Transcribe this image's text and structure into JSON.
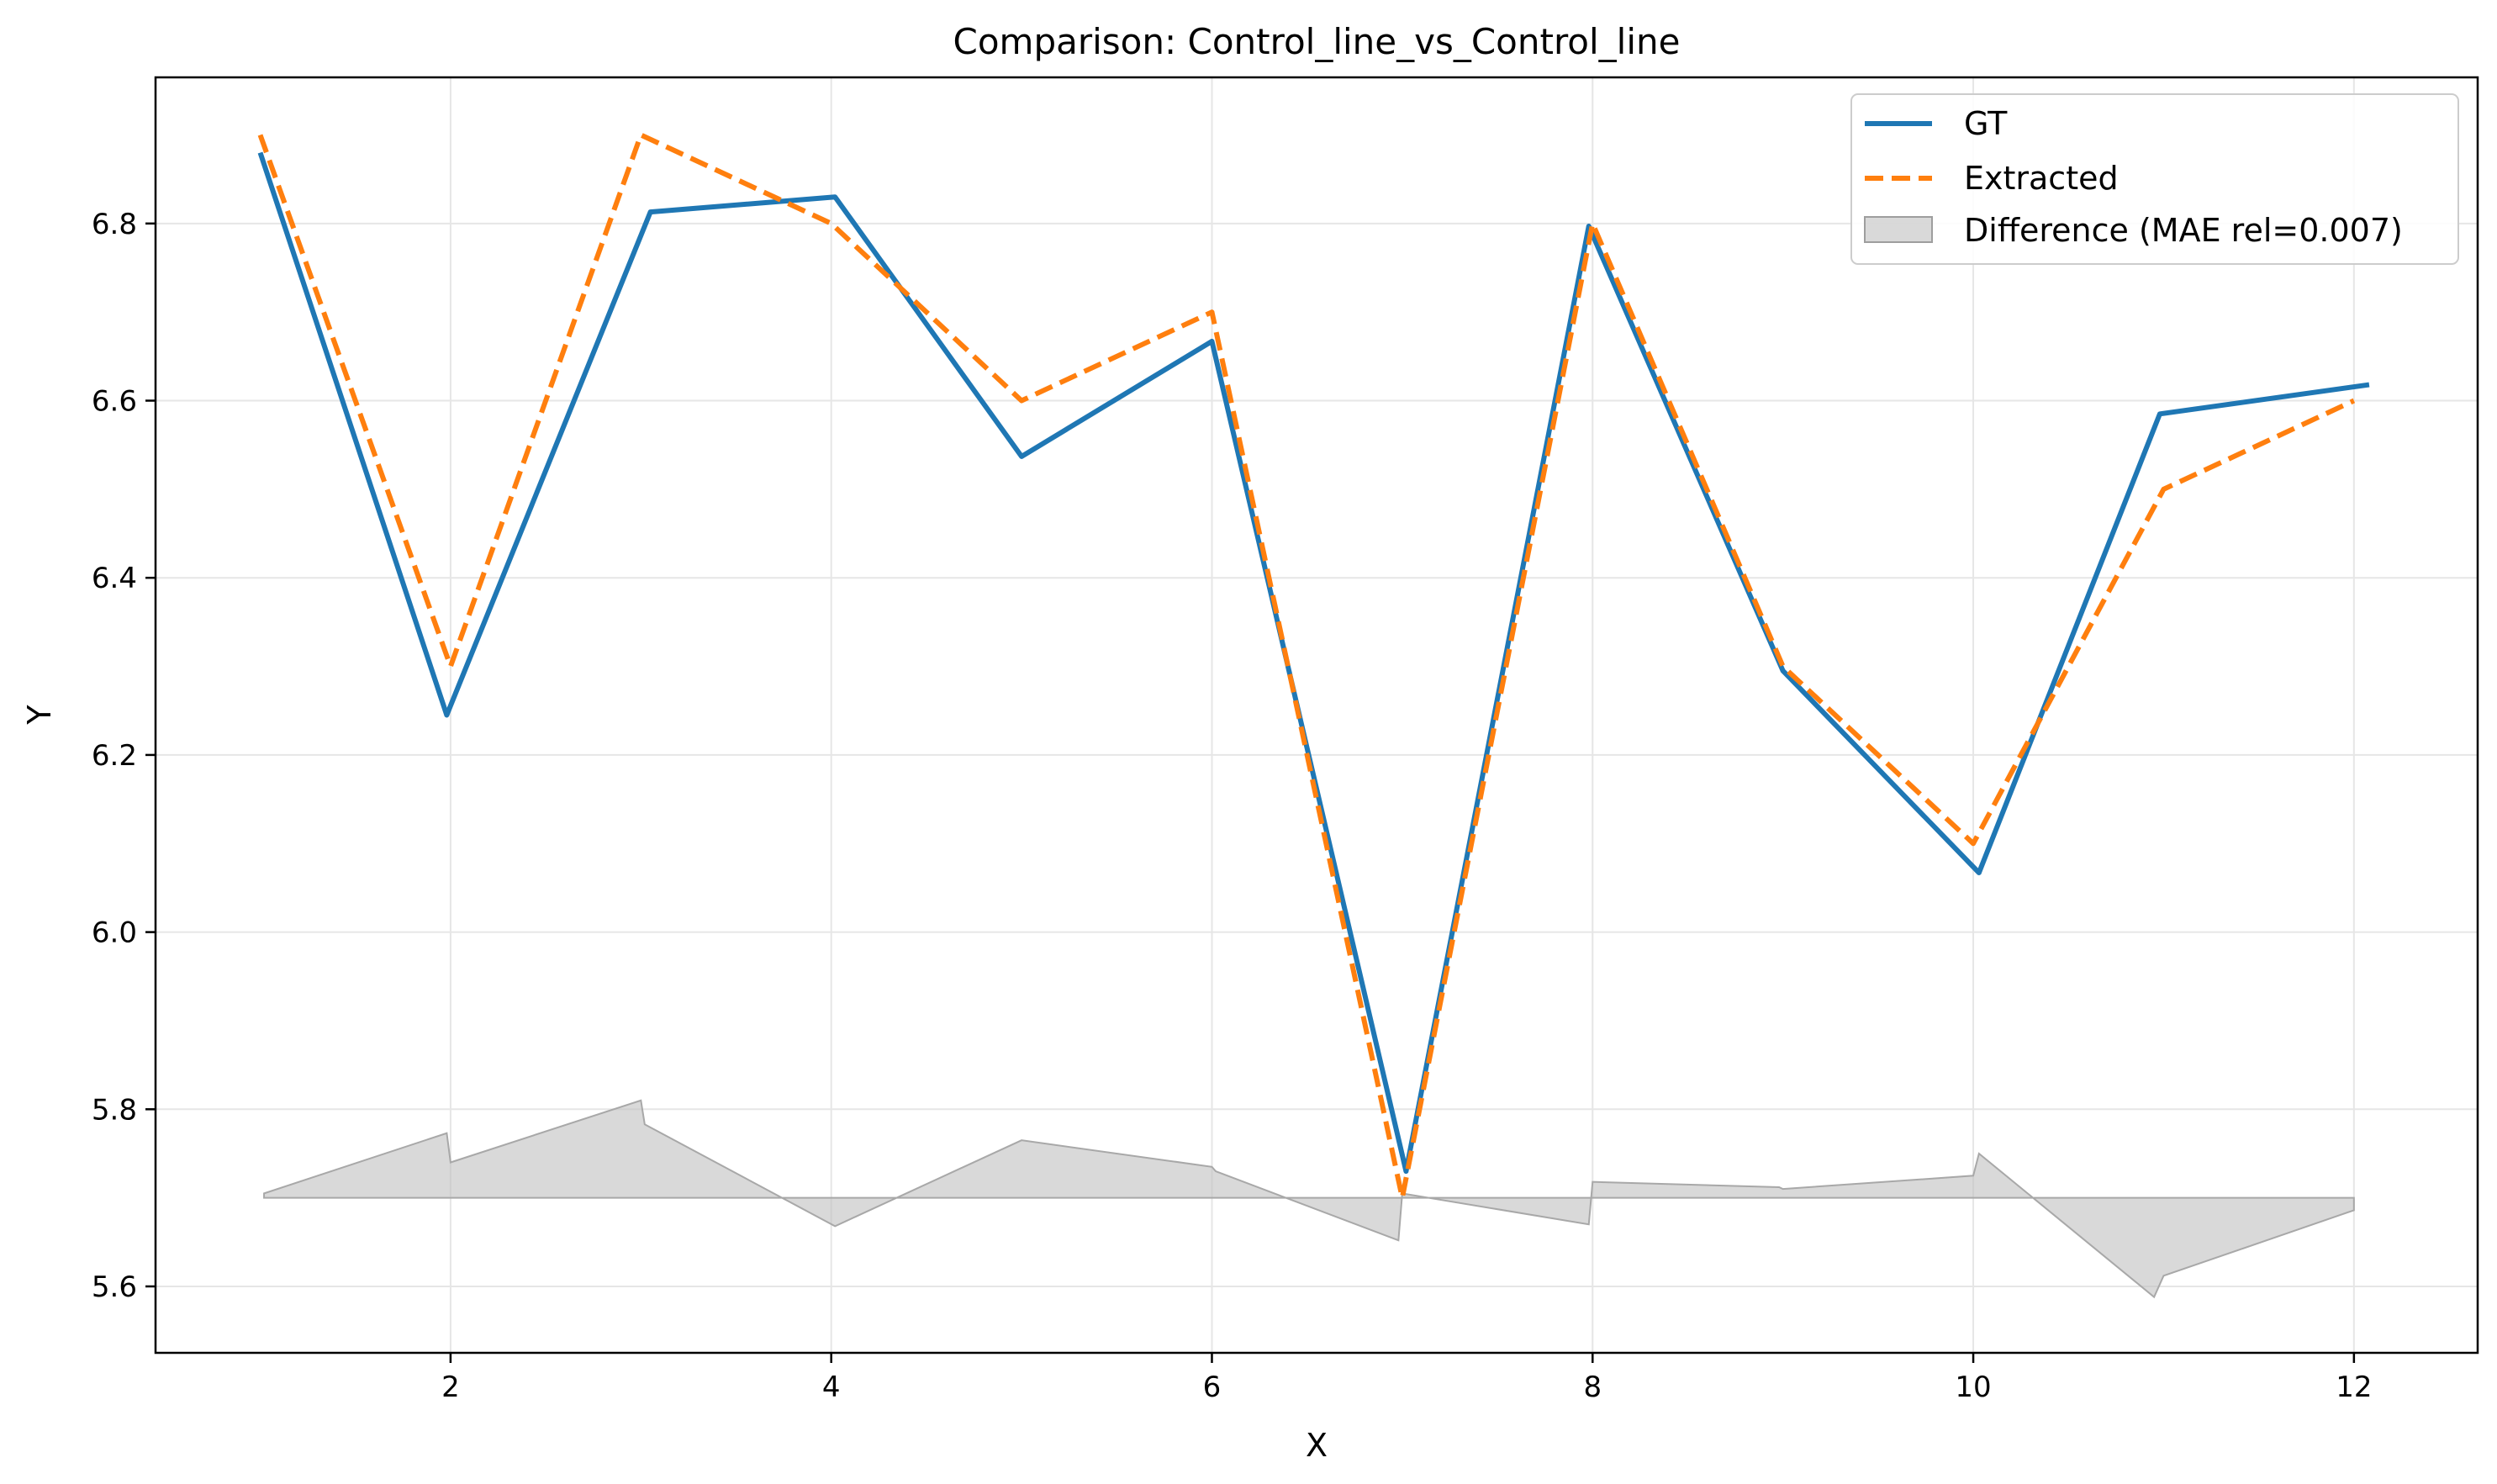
{
  "chart_data": {
    "type": "line",
    "title": "Comparison: Control_line_vs_Control_line",
    "xlabel": "X",
    "ylabel": "Y",
    "xlim": [
      0.45,
      12.65
    ],
    "ylim": [
      5.525,
      6.965
    ],
    "xticks": [
      2,
      4,
      6,
      8,
      10,
      12
    ],
    "yticks": [
      5.6,
      5.8,
      6.0,
      6.2,
      6.4,
      6.6,
      6.8
    ],
    "ytick_labels": [
      "5.6",
      "5.8",
      "6.0",
      "6.2",
      "6.4",
      "6.6",
      "6.8"
    ],
    "grid": true,
    "legend_position": "top-right",
    "series": [
      {
        "name": "GT",
        "style": "solid",
        "color": "#1f77b4",
        "x": [
          1.0,
          1.98,
          3.05,
          4.02,
          5.0,
          6.0,
          7.02,
          7.98,
          9.0,
          10.03,
          10.98,
          12.08
        ],
        "y": [
          6.88,
          6.245,
          6.813,
          6.83,
          6.537,
          6.667,
          5.73,
          6.797,
          6.295,
          6.067,
          6.585,
          6.618
        ]
      },
      {
        "name": "Extracted",
        "style": "dashed",
        "color": "#ff7f0e",
        "x": [
          1.0,
          2.0,
          3.0,
          4.0,
          5.0,
          6.0,
          7.0,
          8.0,
          9.0,
          10.0,
          11.0,
          12.0
        ],
        "y": [
          6.9,
          6.3,
          6.9,
          6.8,
          6.6,
          6.7,
          5.7,
          6.8,
          6.3,
          6.1,
          6.5,
          6.6
        ]
      }
    ],
    "difference": {
      "name": "Difference (MAE rel=0.007)",
      "color": "#bfbfbf",
      "baseline": 5.7,
      "x": [
        1.02,
        1.98,
        2.0,
        3.0,
        3.02,
        4.02,
        5.0,
        6.0,
        6.02,
        6.98,
        7.0,
        7.98,
        8.0,
        8.98,
        9.0,
        10.0,
        10.03,
        10.95,
        11.0,
        12.0
      ],
      "y": [
        5.705,
        5.773,
        5.74,
        5.81,
        5.783,
        5.668,
        5.765,
        5.735,
        5.73,
        5.652,
        5.705,
        5.67,
        5.718,
        5.712,
        5.71,
        5.725,
        5.75,
        5.588,
        5.612,
        5.686
      ]
    }
  }
}
